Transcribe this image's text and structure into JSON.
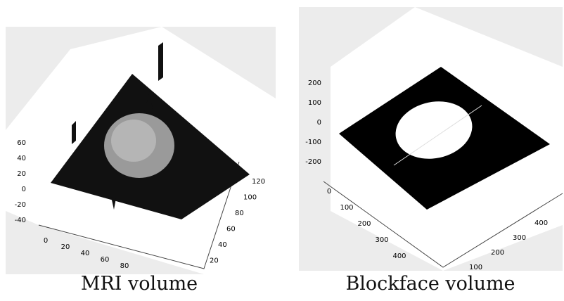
{
  "panels": [
    {
      "caption": "MRI volume",
      "z_ticks": [
        60,
        40,
        20,
        0,
        -20,
        -40
      ],
      "x_ticks": [
        0,
        20,
        40,
        60,
        80
      ],
      "y_ticks": [
        120,
        100,
        80,
        60,
        40,
        20
      ]
    },
    {
      "caption": "Blockface volume",
      "z_ticks": [
        200,
        100,
        0,
        -100,
        -200
      ],
      "x_ticks": [
        0,
        100,
        200,
        300,
        400
      ],
      "y_ticks": [
        400,
        300,
        200,
        100
      ]
    }
  ]
}
